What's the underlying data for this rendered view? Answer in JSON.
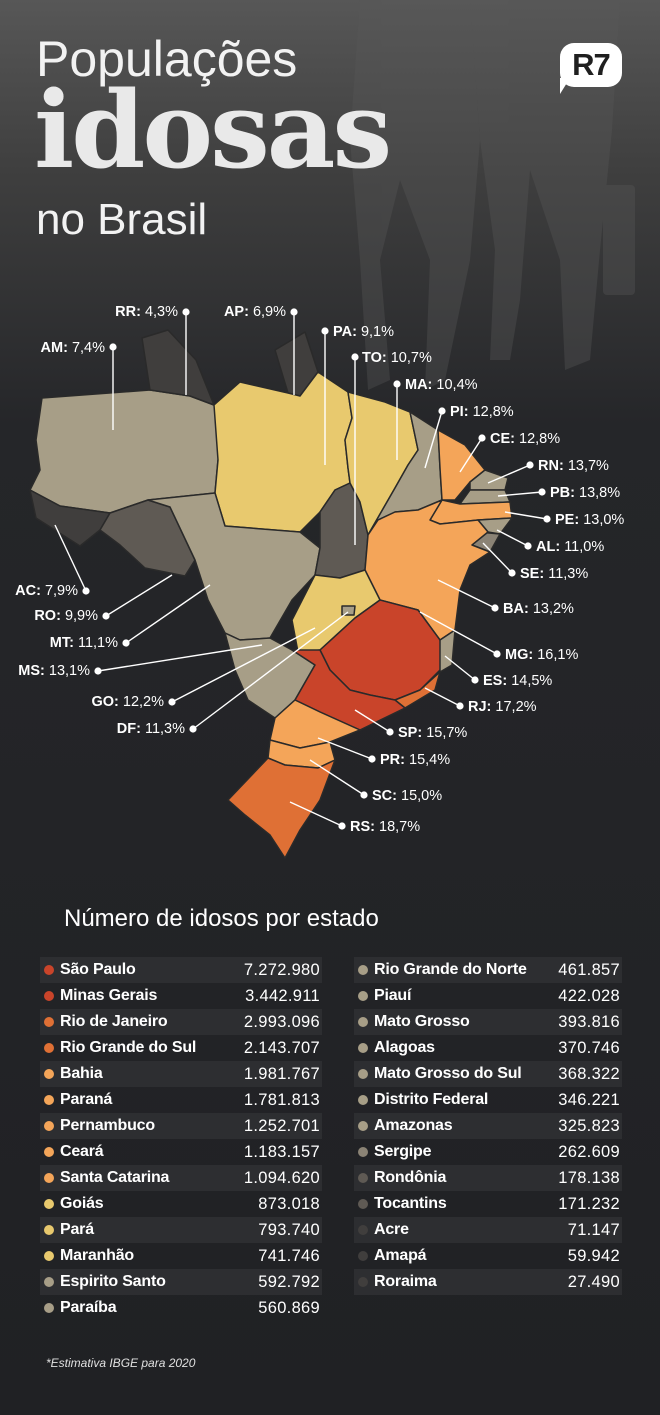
{
  "header": {
    "title_line1": "Populações",
    "title_line2": "idosas",
    "title_line3": "no Brasil",
    "logo": "R7"
  },
  "colors": {
    "background": "#202124",
    "lowest": "#403e3d",
    "low": "#5f5a54",
    "mid_low": "#8b8375",
    "mid": "#a79e87",
    "mid_high": "#e8c96e",
    "high": "#f4a559",
    "higher": "#df7035",
    "highest": "#c9442a"
  },
  "chart_data": {
    "type": "map",
    "title": "Populações idosas no Brasil",
    "subtitle": "Número de idosos por estado",
    "footnote": "*Estimativa IBGE para 2020",
    "states": [
      {
        "abbr": "RR",
        "pct": "4,3%",
        "name": "Roraima",
        "count": "27.490",
        "color": "#403e3d"
      },
      {
        "abbr": "AP",
        "pct": "6,9%",
        "name": "Amapá",
        "count": "59.942",
        "color": "#403e3d"
      },
      {
        "abbr": "AM",
        "pct": "7,4%",
        "name": "Amazonas",
        "count": "325.823",
        "color": "#a79e87"
      },
      {
        "abbr": "PA",
        "pct": "9,1%",
        "name": "Pará",
        "count": "793.740",
        "color": "#e8c96e"
      },
      {
        "abbr": "TO",
        "pct": "10,7%",
        "name": "Tocantins",
        "count": "171.232",
        "color": "#5f5a54"
      },
      {
        "abbr": "MA",
        "pct": "10,4%",
        "name": "Maranhão",
        "count": "741.746",
        "color": "#e8c96e"
      },
      {
        "abbr": "PI",
        "pct": "12,8%",
        "name": "Piauí",
        "count": "422.028",
        "color": "#a79e87"
      },
      {
        "abbr": "CE",
        "pct": "12,8%",
        "name": "Ceará",
        "count": "1.183.157",
        "color": "#f4a559"
      },
      {
        "abbr": "RN",
        "pct": "13,7%",
        "name": "Rio Grande do Norte",
        "count": "461.857",
        "color": "#a79e87"
      },
      {
        "abbr": "PB",
        "pct": "13,8%",
        "name": "Paraíba",
        "count": "560.869",
        "color": "#a79e87"
      },
      {
        "abbr": "PE",
        "pct": "13,0%",
        "name": "Pernambuco",
        "count": "1.252.701",
        "color": "#f4a559"
      },
      {
        "abbr": "AL",
        "pct": "11,0%",
        "name": "Alagoas",
        "count": "370.746",
        "color": "#a79e87"
      },
      {
        "abbr": "SE",
        "pct": "11,3%",
        "name": "Sergipe",
        "count": "262.609",
        "color": "#8b8375"
      },
      {
        "abbr": "AC",
        "pct": "7,9%",
        "name": "Acre",
        "count": "71.147",
        "color": "#403e3d"
      },
      {
        "abbr": "RO",
        "pct": "9,9%",
        "name": "Rondônia",
        "count": "178.138",
        "color": "#5f5a54"
      },
      {
        "abbr": "MT",
        "pct": "11,1%",
        "name": "Mato Grosso",
        "count": "393.816",
        "color": "#a79e87"
      },
      {
        "abbr": "BA",
        "pct": "13,2%",
        "name": "Bahia",
        "count": "1.981.767",
        "color": "#f4a559"
      },
      {
        "abbr": "MG",
        "pct": "16,1%",
        "name": "Minas Gerais",
        "count": "3.442.911",
        "color": "#c9442a"
      },
      {
        "abbr": "ES",
        "pct": "14,5%",
        "name": "Espirito Santo",
        "count": "592.792",
        "color": "#a79e87"
      },
      {
        "abbr": "MS",
        "pct": "13,1%",
        "name": "Mato Grosso do Sul",
        "count": "368.322",
        "color": "#a79e87"
      },
      {
        "abbr": "RJ",
        "pct": "17,2%",
        "name": "Rio de Janeiro",
        "count": "2.993.096",
        "color": "#df7035"
      },
      {
        "abbr": "GO",
        "pct": "12,2%",
        "name": "Goiás",
        "count": "873.018",
        "color": "#e8c96e"
      },
      {
        "abbr": "SP",
        "pct": "15,7%",
        "name": "São Paulo",
        "count": "7.272.980",
        "color": "#c9442a"
      },
      {
        "abbr": "DF",
        "pct": "11,3%",
        "name": "Distrito Federal",
        "count": "346.221",
        "color": "#a79e87"
      },
      {
        "abbr": "PR",
        "pct": "15,4%",
        "name": "Paraná",
        "count": "1.781.813",
        "color": "#f4a559"
      },
      {
        "abbr": "SC",
        "pct": "15,0%",
        "name": "Santa Catarina",
        "count": "1.094.620",
        "color": "#f4a559"
      },
      {
        "abbr": "RS",
        "pct": "18,7%",
        "name": "Rio Grande do Sul",
        "count": "2.143.707",
        "color": "#df7035"
      }
    ],
    "table_left": [
      {
        "name": "São Paulo",
        "count": "7.272.980",
        "color": "#c9442a"
      },
      {
        "name": "Minas Gerais",
        "count": "3.442.911",
        "color": "#c9442a"
      },
      {
        "name": "Rio de Janeiro",
        "count": "2.993.096",
        "color": "#df7035"
      },
      {
        "name": "Rio Grande do Sul",
        "count": "2.143.707",
        "color": "#df7035"
      },
      {
        "name": "Bahia",
        "count": "1.981.767",
        "color": "#f4a559"
      },
      {
        "name": "Paraná",
        "count": "1.781.813",
        "color": "#f4a559"
      },
      {
        "name": "Pernambuco",
        "count": "1.252.701",
        "color": "#f4a559"
      },
      {
        "name": "Ceará",
        "count": "1.183.157",
        "color": "#f4a559"
      },
      {
        "name": "Santa Catarina",
        "count": "1.094.620",
        "color": "#f4a559"
      },
      {
        "name": "Goiás",
        "count": "873.018",
        "color": "#e8c96e"
      },
      {
        "name": "Pará",
        "count": "793.740",
        "color": "#e8c96e"
      },
      {
        "name": "Maranhão",
        "count": "741.746",
        "color": "#e8c96e"
      },
      {
        "name": "Espirito Santo",
        "count": "592.792",
        "color": "#a79e87"
      },
      {
        "name": "Paraíba",
        "count": "560.869",
        "color": "#a79e87"
      }
    ],
    "table_right": [
      {
        "name": "Rio Grande do Norte",
        "count": "461.857",
        "color": "#a79e87"
      },
      {
        "name": "Piauí",
        "count": "422.028",
        "color": "#a79e87"
      },
      {
        "name": "Mato Grosso",
        "count": "393.816",
        "color": "#a79e87"
      },
      {
        "name": "Alagoas",
        "count": "370.746",
        "color": "#a79e87"
      },
      {
        "name": "Mato Grosso do Sul",
        "count": "368.322",
        "color": "#a79e87"
      },
      {
        "name": "Distrito Federal",
        "count": "346.221",
        "color": "#a79e87"
      },
      {
        "name": "Amazonas",
        "count": "325.823",
        "color": "#a79e87"
      },
      {
        "name": "Sergipe",
        "count": "262.609",
        "color": "#8b8375"
      },
      {
        "name": "Rondônia",
        "count": "178.138",
        "color": "#5f5a54"
      },
      {
        "name": "Tocantins",
        "count": "171.232",
        "color": "#5f5a54"
      },
      {
        "name": "Acre",
        "count": "71.147",
        "color": "#403e3d"
      },
      {
        "name": "Amapá",
        "count": "59.942",
        "color": "#403e3d"
      },
      {
        "name": "Roraima",
        "count": "27.490",
        "color": "#403e3d"
      }
    ]
  }
}
